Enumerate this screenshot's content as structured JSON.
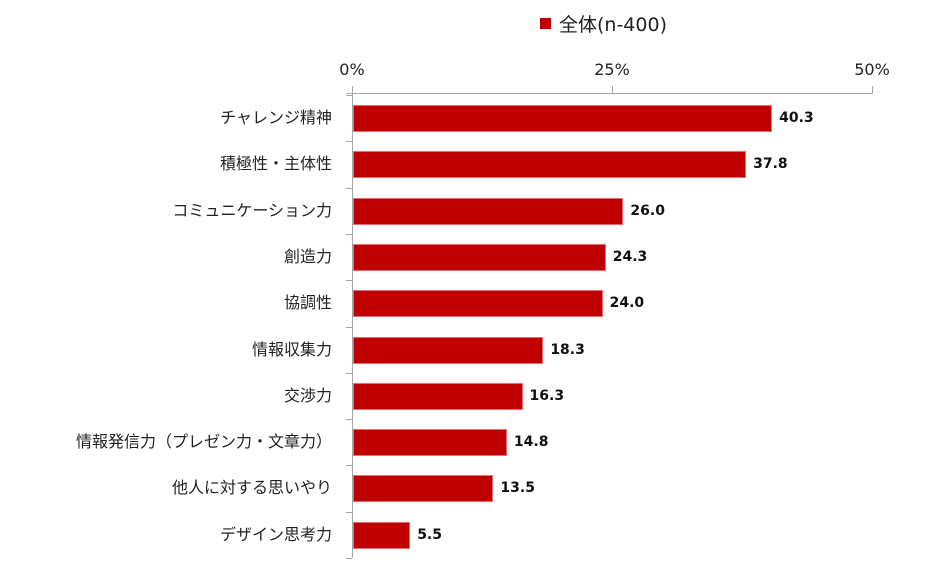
{
  "legend": {
    "label": "全体(n-400)",
    "color": "#c00000"
  },
  "axis": {
    "ticks": [
      {
        "label": "0%",
        "value": 0
      },
      {
        "label": "25%",
        "value": 25
      },
      {
        "label": "50%",
        "value": 50
      }
    ]
  },
  "chart_data": {
    "type": "bar",
    "orientation": "horizontal",
    "title": "",
    "xlabel": "",
    "ylabel": "",
    "xlim": [
      0,
      50
    ],
    "xticks": [
      "0%",
      "25%",
      "50%"
    ],
    "grid": false,
    "legend_position": "top",
    "categories": [
      "チャレンジ精神",
      "積極性・主体性",
      "コミュニケーション力",
      "創造力",
      "協調性",
      "情報収集力",
      "交渉力",
      "情報発信力（プレゼン力・文章力）",
      "他人に対する思いやり",
      "デザイン思考力"
    ],
    "series": [
      {
        "name": "全体(n-400)",
        "color": "#c00000",
        "values": [
          40.3,
          37.8,
          26.0,
          24.3,
          24.0,
          18.3,
          16.3,
          14.8,
          13.5,
          5.5
        ],
        "labels": [
          "40.3",
          "37.8",
          "26.0",
          "24.3",
          "24.0",
          "18.3",
          "16.3",
          "14.8",
          "13.5",
          "5.5"
        ]
      }
    ]
  }
}
